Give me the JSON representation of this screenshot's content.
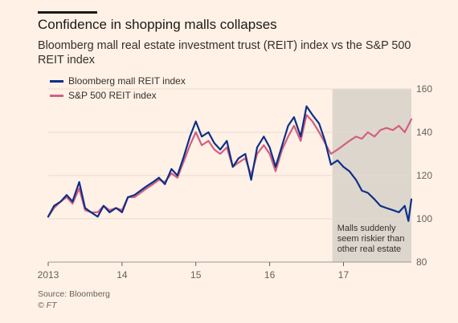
{
  "title": "Confidence in shopping malls collapses",
  "subtitle": "Bloomberg mall real estate investment trust (REIT) index vs the S&P 500 REIT index",
  "source": "Source: Bloomberg",
  "credit": "© FT",
  "colors": {
    "background": "#fff1e5",
    "mall": "#0d2f88",
    "sp500": "#d25f82",
    "shade": "#ddd6cd",
    "grid": "#e6dbd0"
  },
  "chart_data": {
    "type": "line",
    "x_tick_labels": [
      "2013",
      "14",
      "15",
      "16",
      "17"
    ],
    "xlim": [
      2013.0,
      2017.92
    ],
    "y_tick_labels": [
      "160",
      "140",
      "120",
      "100",
      "80"
    ],
    "y_ticks": [
      160,
      140,
      120,
      100,
      80
    ],
    "ylim": [
      80,
      160
    ],
    "y_axis_side": "right",
    "grid": true,
    "legend_position": "top-left",
    "annotation": {
      "text_lines": [
        "Malls suddenly",
        "seem riskier than",
        "other real estate"
      ],
      "shaded_range": [
        2016.85,
        2017.92
      ]
    },
    "series": [
      {
        "name": "Bloomberg mall REIT index",
        "color": "#0d2f88",
        "x": [
          2013.0,
          2013.08,
          2013.17,
          2013.25,
          2013.33,
          2013.42,
          2013.5,
          2013.58,
          2013.67,
          2013.75,
          2013.83,
          2013.92,
          2014.0,
          2014.08,
          2014.17,
          2014.25,
          2014.33,
          2014.42,
          2014.5,
          2014.58,
          2014.67,
          2014.75,
          2014.83,
          2014.92,
          2015.0,
          2015.08,
          2015.17,
          2015.25,
          2015.33,
          2015.42,
          2015.5,
          2015.58,
          2015.67,
          2015.75,
          2015.83,
          2015.92,
          2016.0,
          2016.08,
          2016.17,
          2016.25,
          2016.33,
          2016.42,
          2016.5,
          2016.58,
          2016.67,
          2016.75,
          2016.83,
          2016.92,
          2017.0,
          2017.08,
          2017.17,
          2017.25,
          2017.33,
          2017.42,
          2017.5,
          2017.58,
          2017.67,
          2017.75,
          2017.83,
          2017.88,
          2017.92
        ],
        "y": [
          101,
          106,
          108,
          111,
          108,
          117,
          105,
          103,
          101,
          106,
          103,
          105,
          103,
          110,
          111,
          113,
          115,
          117,
          119,
          116,
          123,
          120,
          128,
          138,
          145,
          138,
          140,
          135,
          132,
          136,
          124,
          128,
          130,
          118,
          133,
          138,
          133,
          124,
          134,
          143,
          147,
          138,
          152,
          148,
          144,
          136,
          125,
          127,
          124,
          122,
          118,
          113,
          112,
          109,
          106,
          105,
          104,
          103,
          106,
          99,
          109
        ]
      },
      {
        "name": "S&P 500 REIT index",
        "color": "#d25f82",
        "x": [
          2013.0,
          2013.08,
          2013.17,
          2013.25,
          2013.33,
          2013.42,
          2013.5,
          2013.58,
          2013.67,
          2013.75,
          2013.83,
          2013.92,
          2014.0,
          2014.08,
          2014.17,
          2014.25,
          2014.33,
          2014.42,
          2014.5,
          2014.58,
          2014.67,
          2014.75,
          2014.83,
          2014.92,
          2015.0,
          2015.08,
          2015.17,
          2015.25,
          2015.33,
          2015.42,
          2015.5,
          2015.58,
          2015.67,
          2015.75,
          2015.83,
          2015.92,
          2016.0,
          2016.08,
          2016.17,
          2016.25,
          2016.33,
          2016.42,
          2016.5,
          2016.58,
          2016.67,
          2016.75,
          2016.83,
          2016.92,
          2017.0,
          2017.08,
          2017.17,
          2017.25,
          2017.33,
          2017.42,
          2017.5,
          2017.58,
          2017.67,
          2017.75,
          2017.83,
          2017.92
        ],
        "y": [
          101,
          105,
          108,
          110,
          107,
          114,
          104,
          103,
          103,
          106,
          104,
          105,
          104,
          110,
          110,
          112,
          114,
          116,
          118,
          117,
          121,
          119,
          126,
          134,
          140,
          134,
          136,
          132,
          130,
          133,
          124,
          126,
          128,
          120,
          130,
          134,
          130,
          122,
          132,
          138,
          143,
          136,
          148,
          145,
          140,
          135,
          130,
          132,
          134,
          136,
          138,
          137,
          140,
          138,
          141,
          142,
          141,
          143,
          140,
          146
        ]
      }
    ]
  }
}
